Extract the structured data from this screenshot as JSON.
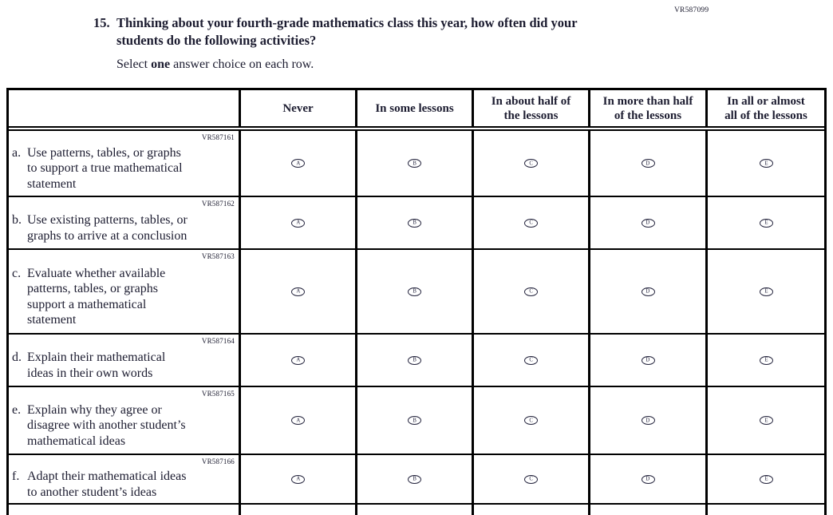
{
  "page": {
    "form_code": "VR587099"
  },
  "question": {
    "number": "15.",
    "text": "Thinking about your fourth-grade mathematics class this year, how often did your\nstudents do the following activities?",
    "instruction_prefix": "Select ",
    "instruction_bold_word": "one",
    "instruction_suffix": " answer choice on each row."
  },
  "table": {
    "column_headers": [
      "Never",
      "In some lessons",
      "In about half of\nthe lessons",
      "In more than half\nof the lessons",
      "In all or almost\nall of the lessons"
    ],
    "answer_options": [
      "A",
      "B",
      "C",
      "D",
      "E"
    ],
    "rows": [
      {
        "code": "VR587161",
        "letter": "a.",
        "text": "Use patterns, tables, or graphs\nto support a true mathematical\nstatement"
      },
      {
        "code": "VR587162",
        "letter": "b.",
        "text": "Use existing patterns, tables, or\ngraphs to arrive at a conclusion"
      },
      {
        "code": "VR587163",
        "letter": "c.",
        "text": "Evaluate whether available\npatterns, tables, or graphs\nsupport a mathematical\nstatement"
      },
      {
        "code": "VR587164",
        "letter": "d.",
        "text": "Explain their mathematical\nideas in their own words"
      },
      {
        "code": "VR587165",
        "letter": "e.",
        "text": "Explain why they agree or\ndisagree with another student’s\nmathematical ideas"
      },
      {
        "code": "VR587166",
        "letter": "f.",
        "text": "Adapt their mathematical ideas\nto another student’s ideas"
      }
    ]
  },
  "colors": {
    "ink": "#1c1c30",
    "border": "#000000",
    "bubble": "#23233c"
  }
}
